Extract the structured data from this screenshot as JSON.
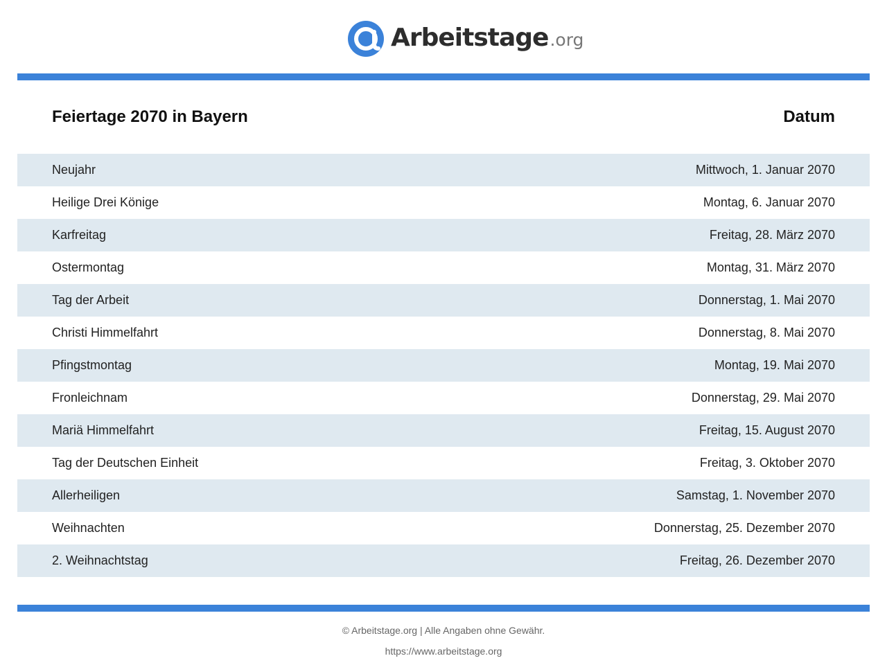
{
  "brand": {
    "logo_icon": "at-sign-icon",
    "name": "Arbeitstage",
    "tld": ".org",
    "accent_color": "#3b82d9",
    "row_alt_color": "#dfe9f0"
  },
  "table": {
    "title": "Feiertage 2070 in Bayern",
    "date_header": "Datum",
    "rows": [
      {
        "name": "Neujahr",
        "date": "Mittwoch, 1. Januar 2070"
      },
      {
        "name": "Heilige Drei Könige",
        "date": "Montag, 6. Januar 2070"
      },
      {
        "name": "Karfreitag",
        "date": "Freitag, 28. März 2070"
      },
      {
        "name": "Ostermontag",
        "date": "Montag, 31. März 2070"
      },
      {
        "name": "Tag der Arbeit",
        "date": "Donnerstag, 1. Mai 2070"
      },
      {
        "name": "Christi Himmelfahrt",
        "date": "Donnerstag, 8. Mai 2070"
      },
      {
        "name": "Pfingstmontag",
        "date": "Montag, 19. Mai 2070"
      },
      {
        "name": "Fronleichnam",
        "date": "Donnerstag, 29. Mai 2070"
      },
      {
        "name": "Mariä Himmelfahrt",
        "date": "Freitag, 15. August 2070"
      },
      {
        "name": "Tag der Deutschen Einheit",
        "date": "Freitag, 3. Oktober 2070"
      },
      {
        "name": "Allerheiligen",
        "date": "Samstag, 1. November 2070"
      },
      {
        "name": "Weihnachten",
        "date": "Donnerstag, 25. Dezember 2070"
      },
      {
        "name": "2. Weihnachtstag",
        "date": "Freitag, 26. Dezember 2070"
      }
    ]
  },
  "footer": {
    "copyright": "© Arbeitstage.org | Alle Angaben ohne Gewähr.",
    "url": "https://www.arbeitstage.org"
  }
}
